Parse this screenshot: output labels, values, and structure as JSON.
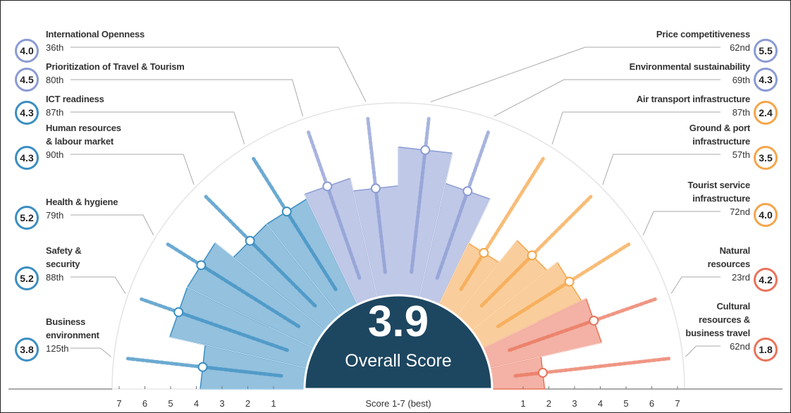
{
  "chart_data": {
    "type": "radial-bar",
    "categories": [
      "Business\nenvironment",
      "Safety &\nsecurity",
      "Health & hygiene",
      "Human resources\n& labour market",
      "ICT readiness",
      "Prioritization of Travel & Tourism",
      "International Openness",
      "Price competitiveness",
      "Environmental sustainability",
      "Air transport infrastructure",
      "Ground & port\ninfrastructure",
      "Tourist service\ninfrastructure",
      "Natural\nresources",
      "Cultural\nresources &\nbusiness travel"
    ],
    "values": [
      3.8,
      5.2,
      5.2,
      4.3,
      4.3,
      4.5,
      4.0,
      5.5,
      4.3,
      2.4,
      3.5,
      4.0,
      4.2,
      1.8
    ],
    "value_labels": [
      "3.8",
      "5.2",
      "5.2",
      "4.3",
      "4.3",
      "4.5",
      "4.0",
      "5.5",
      "4.3",
      "2.4",
      "3.5",
      "4.0",
      "4.2",
      "1.8"
    ],
    "ranks": [
      "125th",
      "88th",
      "79th",
      "90th",
      "87th",
      "80th",
      "36th",
      "62nd",
      "69th",
      "87th",
      "57th",
      "72nd",
      "23rd",
      "62nd"
    ],
    "colors": [
      "#3b8ec2",
      "#3b8ec2",
      "#3b8ec2",
      "#3b8ec2",
      "#3b8ec2",
      "#8b9bd3",
      "#8b9bd3",
      "#8b9bd3",
      "#8b9bd3",
      "#f5a54a",
      "#f5a54a",
      "#f5a54a",
      "#e9735b",
      "#e9735b"
    ],
    "overall_score": 3.9,
    "overall_label": "Overall Score",
    "xlabel": "Score 1-7 (best)",
    "xlim": [
      1,
      7
    ],
    "xticks": [
      1,
      2,
      3,
      4,
      5,
      6,
      7
    ]
  }
}
